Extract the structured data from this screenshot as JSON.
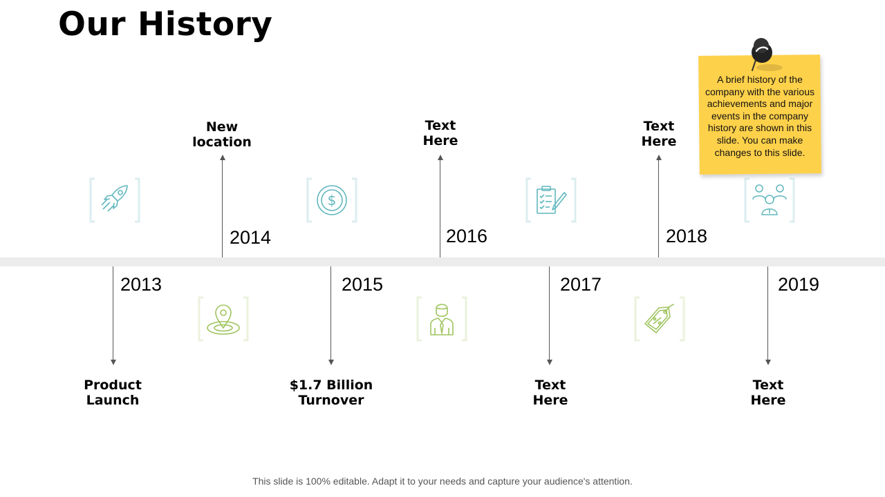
{
  "title": "Our History",
  "note": {
    "text": "A brief history of the company with the various achievements and major events in the company history are shown in this slide. You can make changes to this slide."
  },
  "footer": "This slide is 100% editable. Adapt it to your needs and capture your audience's attention.",
  "milestones": [
    {
      "year": "2013",
      "label_lines": [
        "Product",
        "Launch"
      ],
      "position": "below",
      "icon": "rocket-icon"
    },
    {
      "year": "2014",
      "label_lines": [
        "New",
        "location"
      ],
      "position": "above",
      "icon": "location-pin-icon"
    },
    {
      "year": "2015",
      "label_lines": [
        "$1.7 Billion",
        "Turnover"
      ],
      "position": "below",
      "icon": "dollar-coin-icon"
    },
    {
      "year": "2016",
      "label_lines": [
        "Text",
        "Here"
      ],
      "position": "above",
      "icon": "businessman-icon"
    },
    {
      "year": "2017",
      "label_lines": [
        "Text",
        "Here"
      ],
      "position": "below",
      "icon": "clipboard-checklist-icon"
    },
    {
      "year": "2018",
      "label_lines": [
        "Text",
        "Here"
      ],
      "position": "above",
      "icon": "price-tag-icon"
    },
    {
      "year": "2019",
      "label_lines": [
        "Text",
        "Here"
      ],
      "position": "below",
      "icon": "team-icon"
    }
  ],
  "colors": {
    "teal_icon": "#5fb7bd",
    "teal_bracket": "#dcedf0",
    "green_icon": "#9fc45f",
    "green_bracket": "#ebf2dd",
    "note": "#fed14a",
    "band": "#ececec"
  }
}
